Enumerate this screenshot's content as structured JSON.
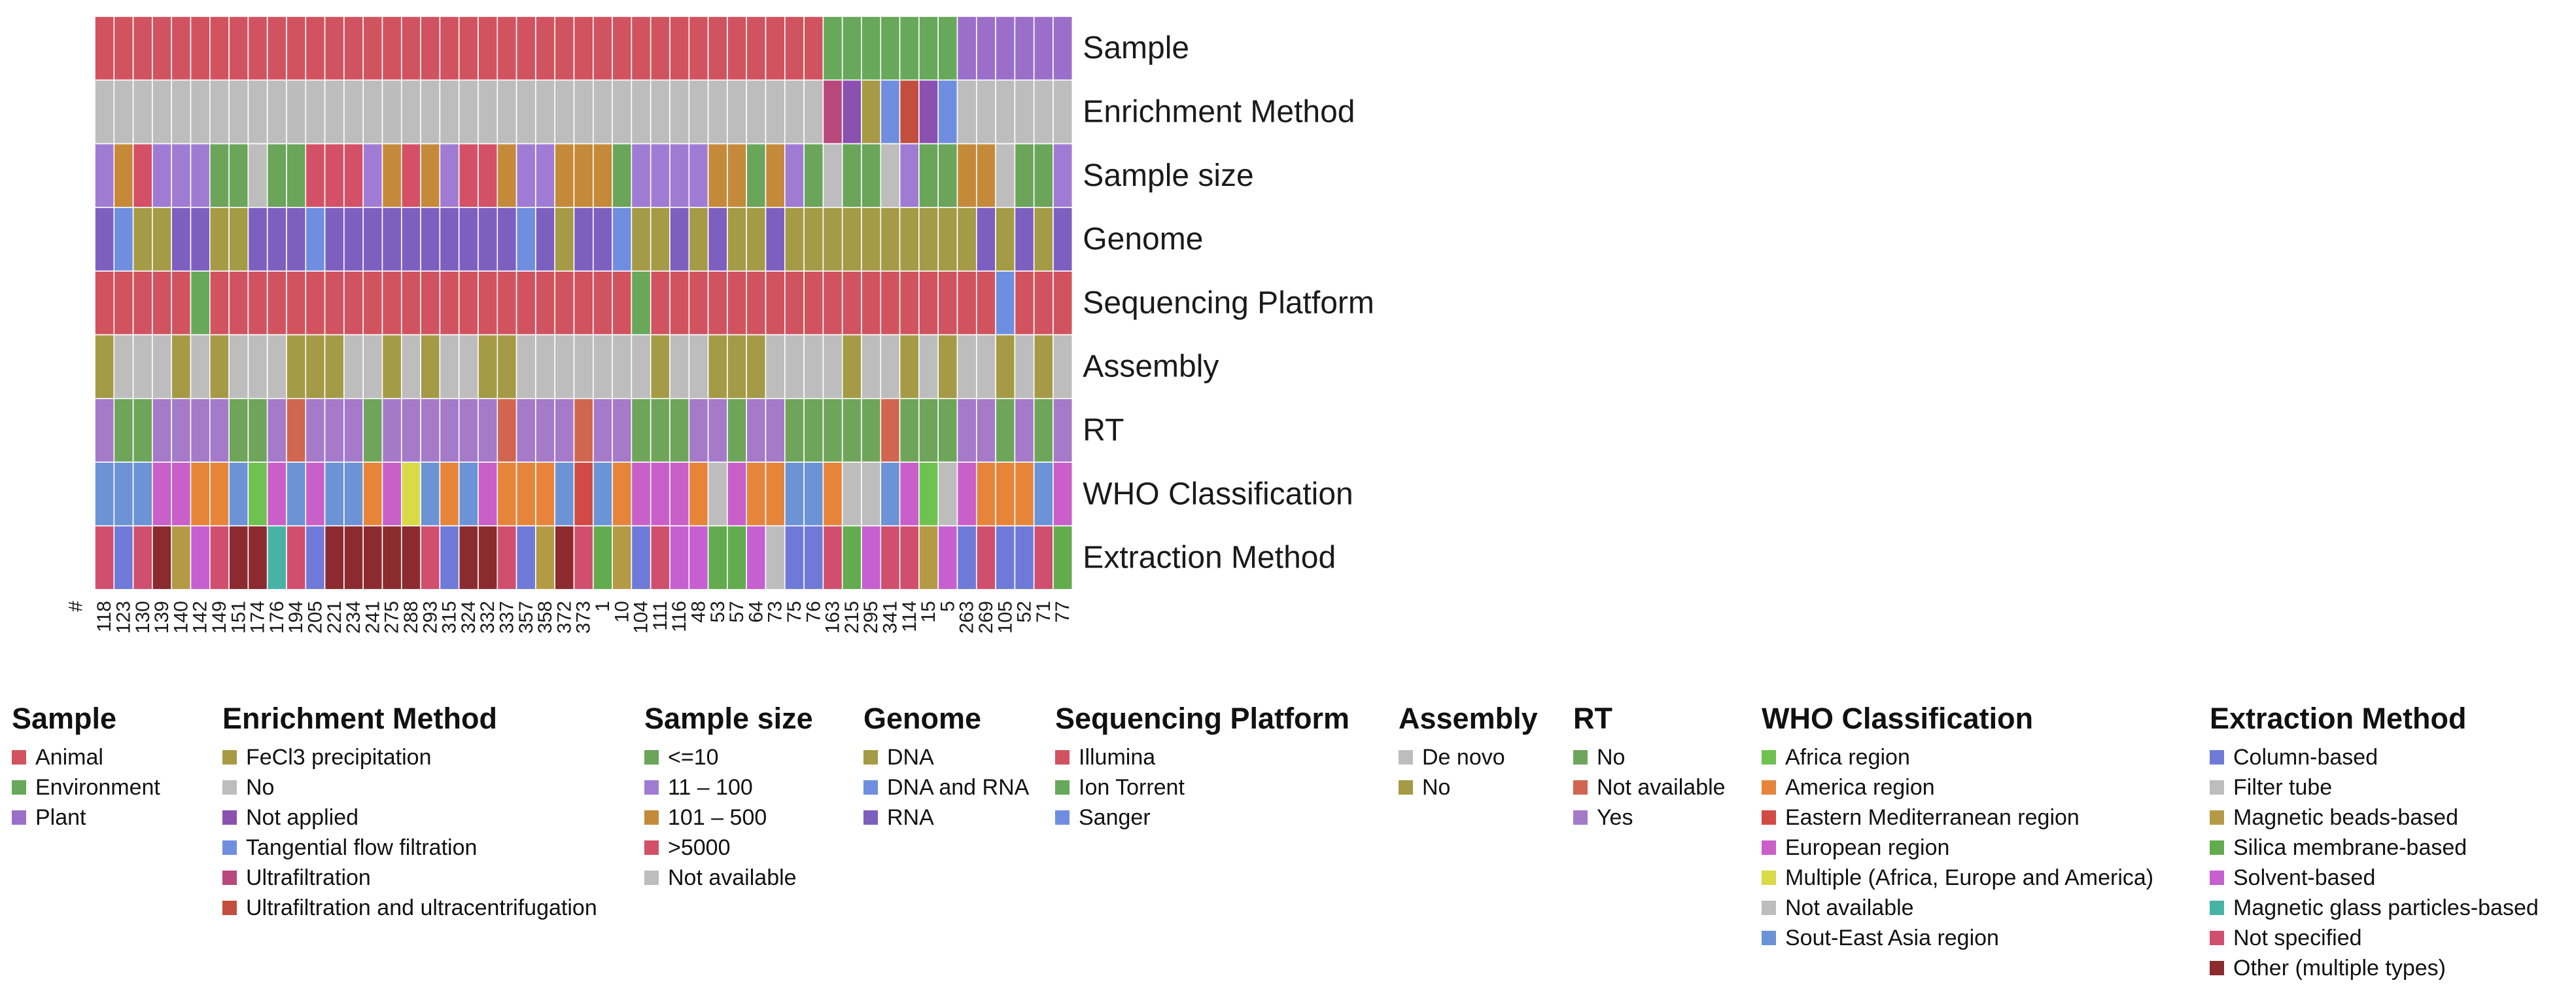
{
  "chart_data": {
    "type": "heatmap",
    "x_axis_header": "#",
    "columns": [
      "118",
      "123",
      "130",
      "139",
      "140",
      "142",
      "149",
      "151",
      "174",
      "176",
      "194",
      "205",
      "221",
      "234",
      "241",
      "275",
      "288",
      "293",
      "315",
      "324",
      "332",
      "337",
      "357",
      "358",
      "372",
      "373",
      "1",
      "10",
      "104",
      "111",
      "116",
      "48",
      "53",
      "57",
      "64",
      "73",
      "75",
      "76",
      "163",
      "215",
      "295",
      "341",
      "114",
      "15",
      "5",
      "263",
      "269",
      "105",
      "52",
      "71",
      "77"
    ],
    "rows": [
      {
        "name": "Sample",
        "cells": [
          "Animal",
          "Animal",
          "Animal",
          "Animal",
          "Animal",
          "Animal",
          "Animal",
          "Animal",
          "Animal",
          "Animal",
          "Animal",
          "Animal",
          "Animal",
          "Animal",
          "Animal",
          "Animal",
          "Animal",
          "Animal",
          "Animal",
          "Animal",
          "Animal",
          "Animal",
          "Animal",
          "Animal",
          "Animal",
          "Animal",
          "Animal",
          "Animal",
          "Animal",
          "Animal",
          "Animal",
          "Animal",
          "Animal",
          "Animal",
          "Animal",
          "Animal",
          "Animal",
          "Animal",
          "Environment",
          "Environment",
          "Environment",
          "Environment",
          "Environment",
          "Environment",
          "Environment",
          "Plant",
          "Plant",
          "Plant",
          "Plant",
          "Plant",
          "Plant"
        ]
      },
      {
        "name": "Enrichment Method",
        "cells": [
          "No",
          "No",
          "No",
          "No",
          "No",
          "No",
          "No",
          "No",
          "No",
          "No",
          "No",
          "No",
          "No",
          "No",
          "No",
          "No",
          "No",
          "No",
          "No",
          "No",
          "No",
          "No",
          "No",
          "No",
          "No",
          "No",
          "No",
          "No",
          "No",
          "No",
          "No",
          "No",
          "No",
          "No",
          "No",
          "No",
          "No",
          "No",
          "Ultrafiltration",
          "Not applied",
          "FeCl3 precipitation",
          "Tangential flow filtration",
          "Ultrafiltration and ultracentrifugation",
          "Not applied",
          "Tangential flow filtration",
          "No",
          "No",
          "No",
          "No",
          "No",
          "No"
        ]
      },
      {
        "name": "Sample size",
        "cells": [
          "11 – 100",
          "101 – 500",
          ">5000",
          "11 – 100",
          "11 – 100",
          "11 – 100",
          "<=10",
          "<=10",
          "Not available",
          "<=10",
          "<=10",
          ">5000",
          ">5000",
          ">5000",
          "11 – 100",
          "101 – 500",
          ">5000",
          "101 – 500",
          "11 – 100",
          ">5000",
          ">5000",
          "101 – 500",
          "11 – 100",
          "11 – 100",
          "101 – 500",
          "101 – 500",
          "101 – 500",
          "<=10",
          "11 – 100",
          "11 – 100",
          "11 – 100",
          "11 – 100",
          "101 – 500",
          "101 – 500",
          "<=10",
          "101 – 500",
          "11 – 100",
          "<=10",
          "Not available",
          "<=10",
          "<=10",
          "Not available",
          "11 – 100",
          "<=10",
          "<=10",
          "101 – 500",
          "101 – 500",
          "Not available",
          "<=10",
          "<=10",
          "11 – 100"
        ]
      },
      {
        "name": "Genome",
        "cells": [
          "RNA",
          "DNA and RNA",
          "DNA",
          "DNA",
          "RNA",
          "RNA",
          "DNA",
          "DNA",
          "RNA",
          "RNA",
          "RNA",
          "DNA and RNA",
          "RNA",
          "RNA",
          "RNA",
          "RNA",
          "RNA",
          "RNA",
          "RNA",
          "RNA",
          "RNA",
          "RNA",
          "DNA and RNA",
          "RNA",
          "DNA",
          "RNA",
          "RNA",
          "DNA and RNA",
          "DNA",
          "DNA",
          "RNA",
          "DNA",
          "RNA",
          "DNA",
          "DNA",
          "RNA",
          "DNA",
          "DNA",
          "DNA",
          "DNA",
          "DNA",
          "DNA",
          "DNA",
          "DNA",
          "DNA",
          "DNA",
          "RNA",
          "DNA",
          "RNA",
          "DNA",
          "RNA"
        ]
      },
      {
        "name": "Sequencing Platform",
        "cells": [
          "Illumina",
          "Illumina",
          "Illumina",
          "Illumina",
          "Illumina",
          "Ion Torrent",
          "Illumina",
          "Illumina",
          "Illumina",
          "Illumina",
          "Illumina",
          "Illumina",
          "Illumina",
          "Illumina",
          "Illumina",
          "Illumina",
          "Illumina",
          "Illumina",
          "Illumina",
          "Illumina",
          "Illumina",
          "Illumina",
          "Illumina",
          "Illumina",
          "Illumina",
          "Illumina",
          "Illumina",
          "Illumina",
          "Ion Torrent",
          "Illumina",
          "Illumina",
          "Illumina",
          "Illumina",
          "Illumina",
          "Illumina",
          "Illumina",
          "Illumina",
          "Illumina",
          "Illumina",
          "Illumina",
          "Illumina",
          "Illumina",
          "Illumina",
          "Illumina",
          "Illumina",
          "Illumina",
          "Illumina",
          "Sanger",
          "Illumina",
          "Illumina",
          "Illumina"
        ]
      },
      {
        "name": "Assembly",
        "cells": [
          "No",
          "De novo",
          "De novo",
          "De novo",
          "No",
          "De novo",
          "No",
          "De novo",
          "De novo",
          "De novo",
          "No",
          "No",
          "No",
          "De novo",
          "De novo",
          "No",
          "De novo",
          "No",
          "De novo",
          "De novo",
          "No",
          "No",
          "De novo",
          "De novo",
          "De novo",
          "De novo",
          "De novo",
          "De novo",
          "De novo",
          "No",
          "De novo",
          "De novo",
          "No",
          "No",
          "No",
          "De novo",
          "De novo",
          "De novo",
          "De novo",
          "No",
          "De novo",
          "De novo",
          "No",
          "De novo",
          "No",
          "De novo",
          "De novo",
          "No",
          "De novo",
          "No",
          "De novo"
        ]
      },
      {
        "name": "RT",
        "cells": [
          "Yes",
          "No",
          "No",
          "Yes",
          "Yes",
          "Yes",
          "Yes",
          "No",
          "No",
          "Yes",
          "Not available",
          "Yes",
          "Yes",
          "Yes",
          "No",
          "Yes",
          "Yes",
          "Yes",
          "Yes",
          "Yes",
          "Yes",
          "Not available",
          "Yes",
          "Yes",
          "Yes",
          "Not available",
          "Yes",
          "Yes",
          "No",
          "No",
          "No",
          "Yes",
          "Yes",
          "No",
          "Yes",
          "Yes",
          "No",
          "No",
          "No",
          "No",
          "No",
          "Not available",
          "No",
          "No",
          "No",
          "Yes",
          "Yes",
          "No",
          "Yes",
          "No",
          "Yes"
        ]
      },
      {
        "name": "WHO Classification",
        "cells": [
          "Sout-East Asia region",
          "Sout-East Asia region",
          "Sout-East Asia region",
          "European region",
          "European region",
          "America region",
          "America region",
          "Sout-East Asia region",
          "Africa region",
          "European region",
          "Sout-East Asia region",
          "European region",
          "Sout-East Asia region",
          "Sout-East Asia region",
          "America region",
          "European region",
          "Multiple (Africa, Europe and America)",
          "Sout-East Asia region",
          "America region",
          "Sout-East Asia region",
          "European region",
          "America region",
          "America region",
          "America region",
          "Sout-East Asia region",
          "Eastern Mediterranean region",
          "Sout-East Asia region",
          "America region",
          "European region",
          "European region",
          "European region",
          "America region",
          "Not available",
          "European region",
          "America region",
          "America region",
          "Sout-East Asia region",
          "Sout-East Asia region",
          "America region",
          "Not available",
          "Not available",
          "Sout-East Asia region",
          "European region",
          "Africa region",
          "Not available",
          "European region",
          "America region",
          "America region",
          "America region",
          "Sout-East Asia region",
          "European region"
        ]
      },
      {
        "name": "Extraction Method",
        "cells": [
          "Not specified",
          "Column-based",
          "Not specified",
          "Other (multiple types)",
          "Magnetic beads-based",
          "Solvent-based",
          "Not specified",
          "Other (multiple types)",
          "Other (multiple types)",
          "Magnetic glass particles-based",
          "Not specified",
          "Column-based",
          "Other (multiple types)",
          "Other (multiple types)",
          "Other (multiple types)",
          "Other (multiple types)",
          "Other (multiple types)",
          "Not specified",
          "Column-based",
          "Other (multiple types)",
          "Other (multiple types)",
          "Not specified",
          "Column-based",
          "Magnetic beads-based",
          "Other (multiple types)",
          "Not specified",
          "Silica membrane-based",
          "Magnetic beads-based",
          "Column-based",
          "Not specified",
          "Solvent-based",
          "Solvent-based",
          "Silica membrane-based",
          "Silica membrane-based",
          "Solvent-based",
          "Filter tube",
          "Column-based",
          "Column-based",
          "Not specified",
          "Silica membrane-based",
          "Solvent-based",
          "Not specified",
          "Not specified",
          "Magnetic beads-based",
          "Solvent-based",
          "Column-based",
          "Not specified",
          "Column-based",
          "Column-based",
          "Not specified",
          "Silica membrane-based"
        ]
      }
    ],
    "legends": [
      {
        "title": "Sample",
        "items": [
          {
            "label": "Animal",
            "color": "#d1535f"
          },
          {
            "label": "Environment",
            "color": "#67a85a"
          },
          {
            "label": "Plant",
            "color": "#9b6fc9"
          }
        ]
      },
      {
        "title": "Enrichment Method",
        "items": [
          {
            "label": "FeCl3 precipitation",
            "color": "#a89a45"
          },
          {
            "label": "No",
            "color": "#bdbdbd"
          },
          {
            "label": "Not applied",
            "color": "#8a51b0"
          },
          {
            "label": "Tangential flow filtration",
            "color": "#6f8ee0"
          },
          {
            "label": "Ultrafiltration",
            "color": "#b8477c"
          },
          {
            "label": "Ultrafiltration and ultracentrifugation",
            "color": "#c24e3d"
          }
        ]
      },
      {
        "title": "Sample size",
        "items": [
          {
            "label": "<=10",
            "color": "#6aa55a"
          },
          {
            "label": "11 – 100",
            "color": "#a07bd3"
          },
          {
            "label": "101 – 500",
            "color": "#c48a3a"
          },
          {
            "label": ">5000",
            "color": "#d45066"
          },
          {
            "label": "Not available",
            "color": "#bdbdbd"
          }
        ]
      },
      {
        "title": "Genome",
        "items": [
          {
            "label": "DNA",
            "color": "#a59a45"
          },
          {
            "label": "DNA and RNA",
            "color": "#6f8ee0"
          },
          {
            "label": "RNA",
            "color": "#7d5fc0"
          }
        ]
      },
      {
        "title": "Sequencing Platform",
        "items": [
          {
            "label": "Illumina",
            "color": "#d1535f"
          },
          {
            "label": "Ion Torrent",
            "color": "#67a85a"
          },
          {
            "label": "Sanger",
            "color": "#6f8ee0"
          }
        ]
      },
      {
        "title": "Assembly",
        "items": [
          {
            "label": "De novo",
            "color": "#bdbdbd"
          },
          {
            "label": "No",
            "color": "#a59a45"
          }
        ]
      },
      {
        "title": "RT",
        "items": [
          {
            "label": "No",
            "color": "#6fa55a"
          },
          {
            "label": "Not available",
            "color": "#d06650"
          },
          {
            "label": "Yes",
            "color": "#a47ac9"
          }
        ]
      },
      {
        "title": "WHO Classification",
        "items": [
          {
            "label": "Africa region",
            "color": "#6fc24f"
          },
          {
            "label": "America region",
            "color": "#e6853a"
          },
          {
            "label": "Eastern Mediterranean region",
            "color": "#d24a45"
          },
          {
            "label": "European region",
            "color": "#c95fc9"
          },
          {
            "label": "Multiple (Africa, Europe and America)",
            "color": "#d8db45"
          },
          {
            "label": "Not available",
            "color": "#bdbdbd"
          },
          {
            "label": "Sout-East Asia region",
            "color": "#6b93d6"
          }
        ]
      },
      {
        "title": "Extraction Method",
        "items": [
          {
            "label": "Column-based",
            "color": "#6f7ad8"
          },
          {
            "label": "Filter tube",
            "color": "#bdbdbd"
          },
          {
            "label": "Magnetic beads-based",
            "color": "#b59a45"
          },
          {
            "label": "Silica membrane-based",
            "color": "#62ab4e"
          },
          {
            "label": "Solvent-based",
            "color": "#c65fcf"
          },
          {
            "label": "Magnetic glass particles-based",
            "color": "#47b3a6"
          },
          {
            "label": "Not specified",
            "color": "#d04f6e"
          },
          {
            "label": "Other (multiple types)",
            "color": "#8b2a2f"
          }
        ]
      }
    ]
  }
}
